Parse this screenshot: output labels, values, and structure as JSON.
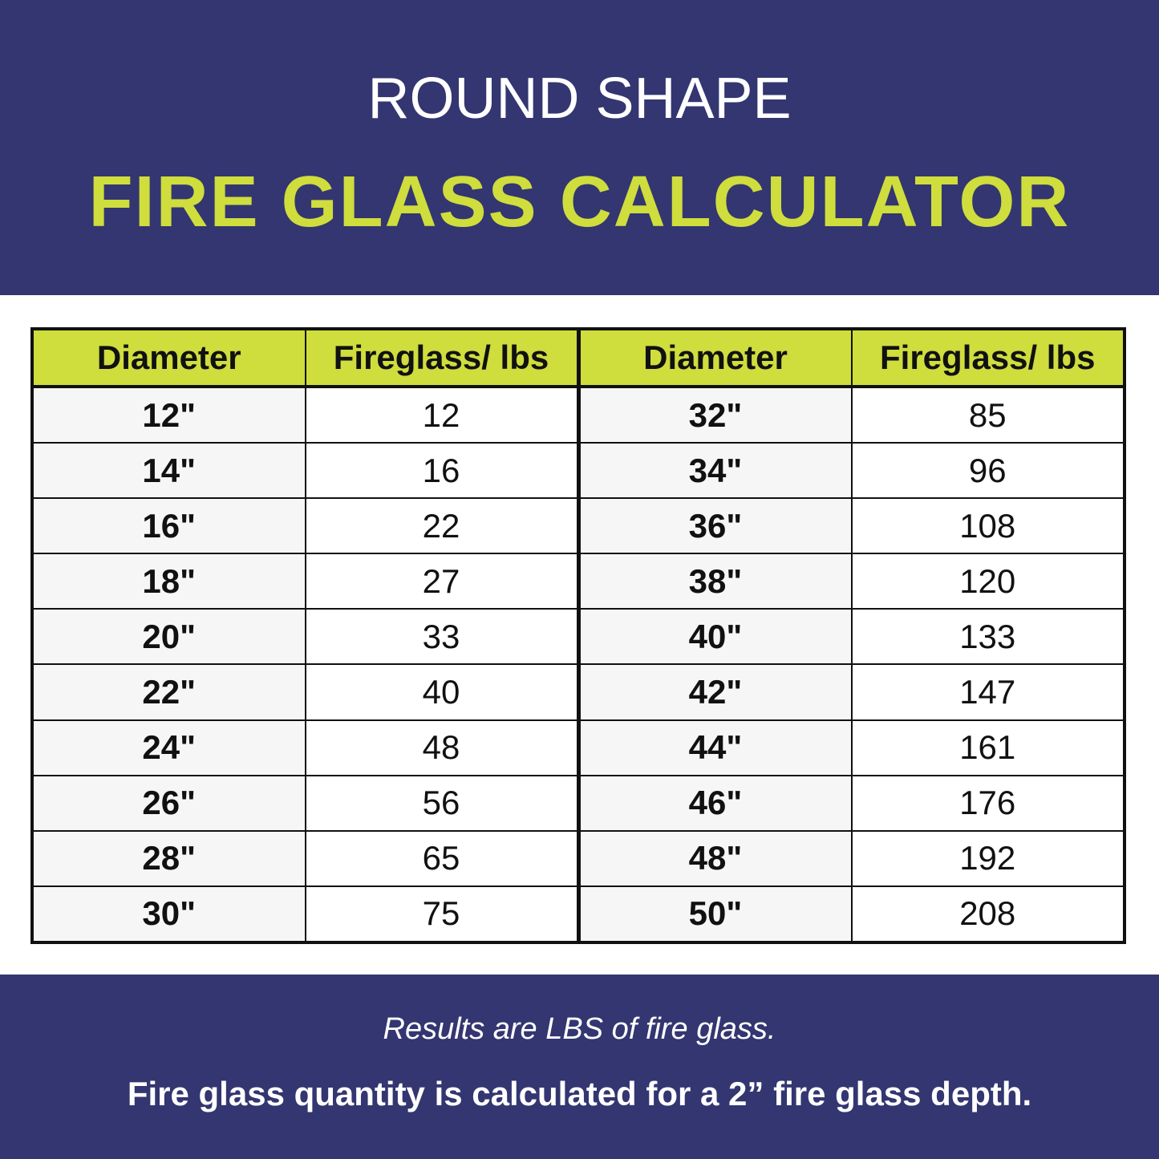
{
  "header": {
    "subtitle": "ROUND SHAPE",
    "title": "FIRE GLASS CALCULATOR"
  },
  "colors": {
    "navy": "#333670",
    "lime": "#cfdd3d"
  },
  "table": {
    "columns": [
      "Diameter",
      "Fireglass/ lbs",
      "Diameter",
      "Fireglass/ lbs"
    ],
    "rows": [
      [
        "12\"",
        "12",
        "32\"",
        "85"
      ],
      [
        "14\"",
        "16",
        "34\"",
        "96"
      ],
      [
        "16\"",
        "22",
        "36\"",
        "108"
      ],
      [
        "18\"",
        "27",
        "38\"",
        "120"
      ],
      [
        "20\"",
        "33",
        "40\"",
        "133"
      ],
      [
        "22\"",
        "40",
        "42\"",
        "147"
      ],
      [
        "24\"",
        "48",
        "44\"",
        "161"
      ],
      [
        "26\"",
        "56",
        "46\"",
        "176"
      ],
      [
        "28\"",
        "65",
        "48\"",
        "192"
      ],
      [
        "30\"",
        "75",
        "50\"",
        "208"
      ]
    ]
  },
  "footer": {
    "note1": "Results are LBS of fire glass.",
    "note2": "Fire glass quantity is calculated for a 2” fire glass depth."
  }
}
